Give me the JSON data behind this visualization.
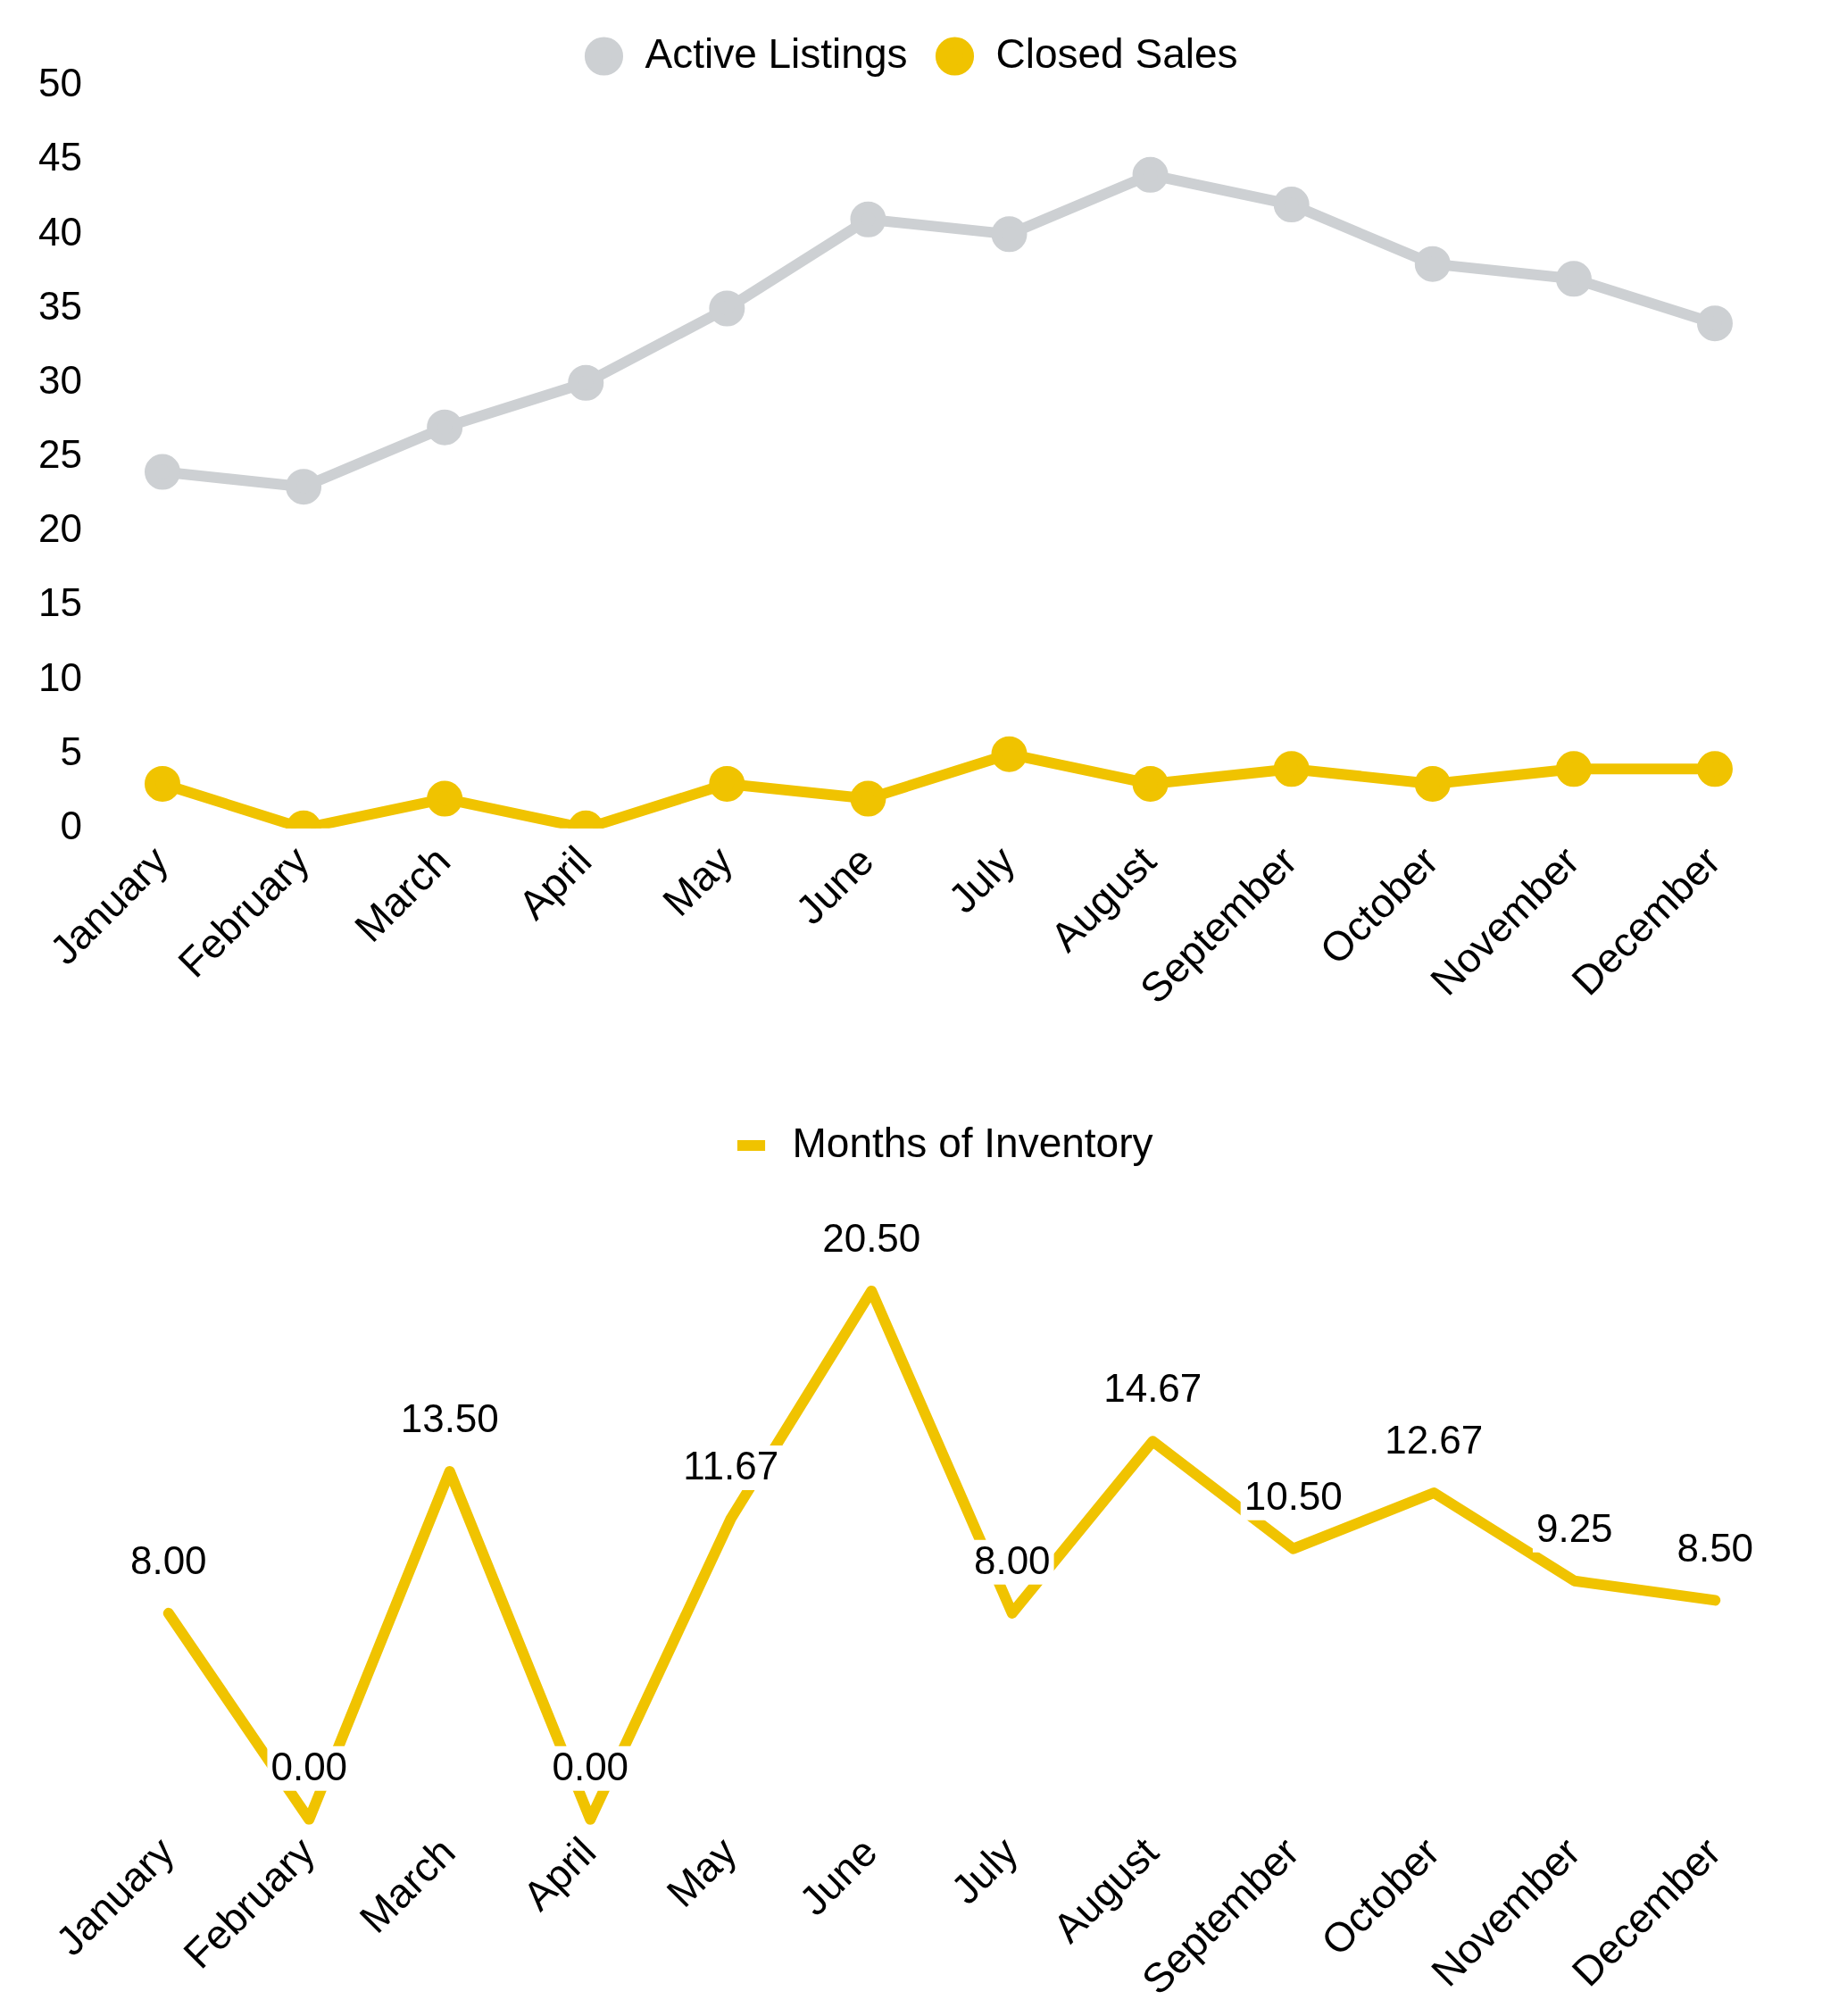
{
  "chart_data": [
    {
      "type": "line",
      "categories": [
        "January",
        "February",
        "March",
        "April",
        "May",
        "June",
        "July",
        "August",
        "September",
        "October",
        "November",
        "December"
      ],
      "series": [
        {
          "name": "Active Listings",
          "color": "#cdd0d3",
          "values": [
            24,
            23,
            27,
            30,
            35,
            41,
            40,
            44,
            42,
            38,
            37,
            34
          ]
        },
        {
          "name": "Closed Sales",
          "color": "#f0c300",
          "values": [
            3,
            0,
            2,
            0,
            3,
            2,
            5,
            3,
            4,
            3,
            4,
            4
          ]
        }
      ],
      "ylim": [
        0,
        50
      ],
      "yticks": [
        0,
        5,
        10,
        15,
        20,
        25,
        30,
        35,
        40,
        45,
        50
      ],
      "grid": false,
      "legend": "top",
      "marker": "circle"
    },
    {
      "type": "line",
      "categories": [
        "January",
        "February",
        "March",
        "April",
        "May",
        "June",
        "July",
        "August",
        "September",
        "October",
        "November",
        "December"
      ],
      "series": [
        {
          "name": "Months of Inventory",
          "color": "#f0c300",
          "values": [
            8,
            0,
            13.5,
            0,
            11.67,
            20.5,
            8,
            14.67,
            10.5,
            12.67,
            9.25,
            8.5
          ],
          "value_labels": [
            "8.00",
            "0.00",
            "13.50",
            "0.00",
            "11.67",
            "20.50",
            "8.00",
            "14.67",
            "10.50",
            "12.67",
            "9.25",
            "8.50"
          ]
        }
      ],
      "tick_labels": "x",
      "grid": false,
      "legend": "top",
      "marker": "none"
    }
  ]
}
